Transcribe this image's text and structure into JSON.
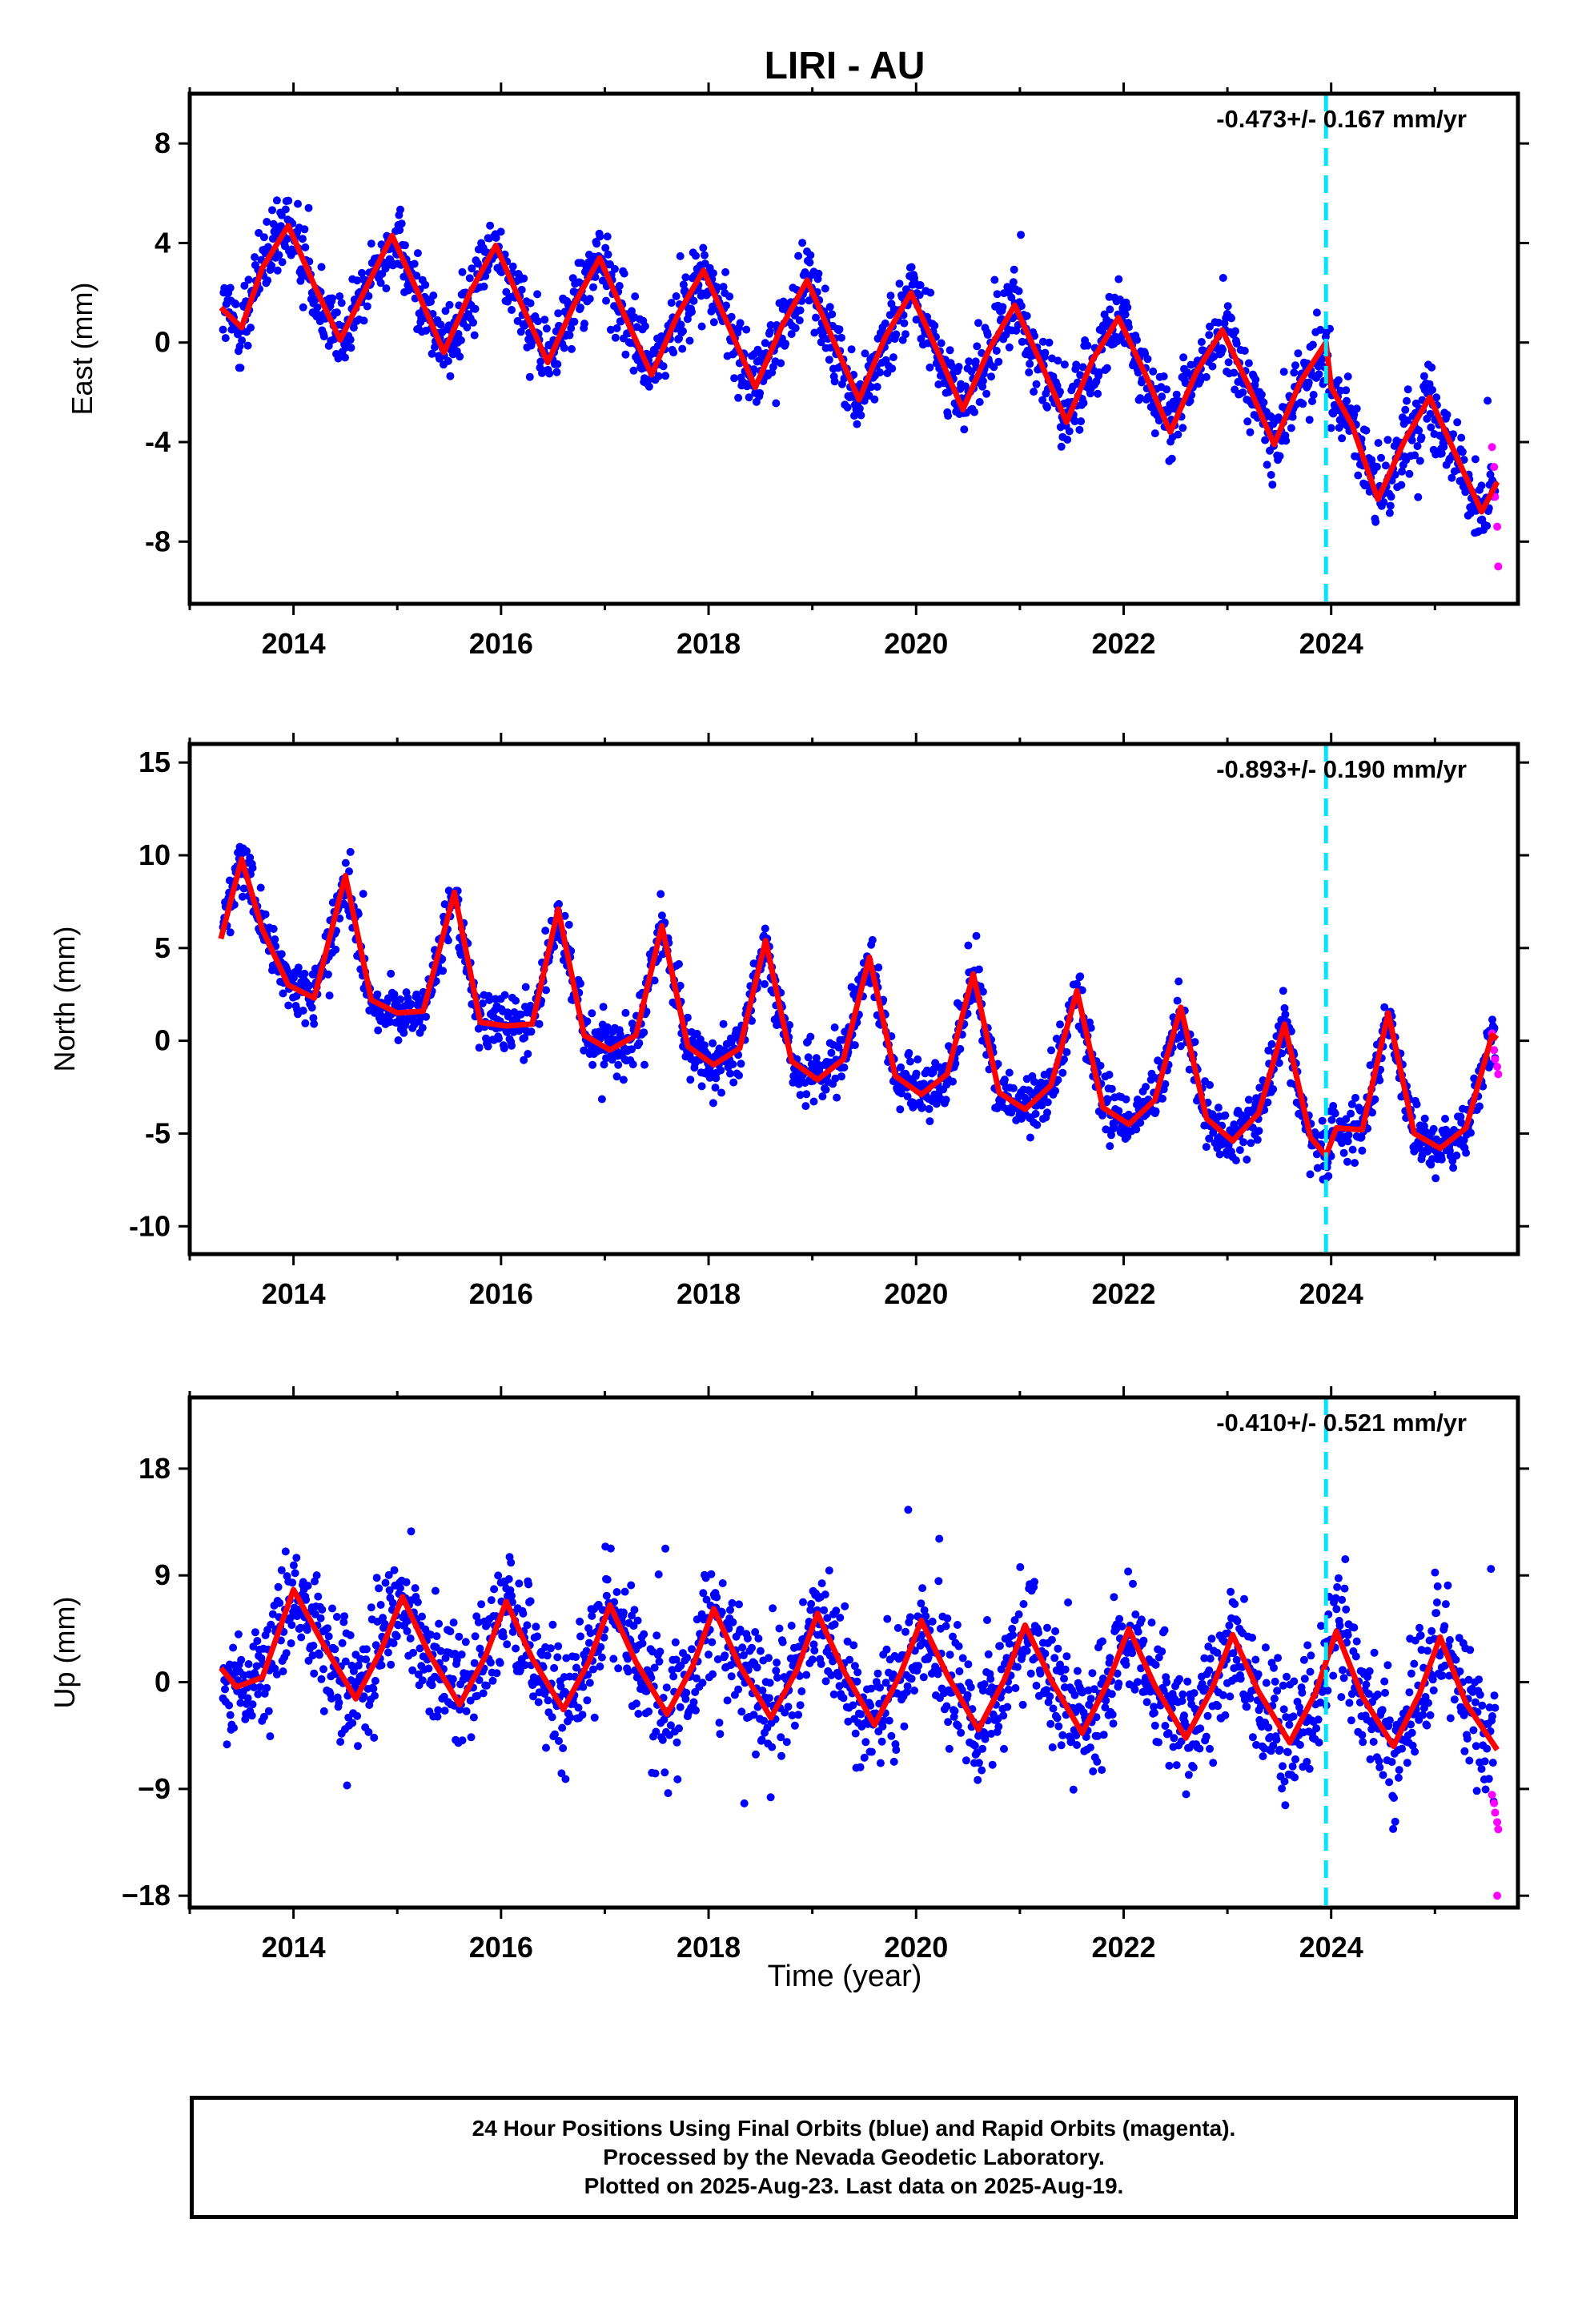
{
  "title": "LIRI - AU",
  "xlabel": "Time (year)",
  "colors": {
    "final": "#0000ff",
    "rapid": "#ff00ff",
    "model": "#ff0000",
    "event": "#00e5ff"
  },
  "footer": {
    "line1": "24 Hour Positions Using Final Orbits (blue) and Rapid Orbits (magenta).",
    "line2": "Processed by the Nevada Geodetic Laboratory.",
    "line3": "Plotted on 2025-Aug-23. Last data on 2025-Aug-19."
  },
  "chart_data": [
    {
      "type": "scatter",
      "name": "east",
      "title": "LIRI - AU",
      "ylabel": "East (mm)",
      "xlabel": "",
      "rate_text": "-0.473+/- 0.167 mm/yr",
      "xlim": [
        2013.0,
        2025.8
      ],
      "ylim": [
        -10.5,
        10
      ],
      "xticks": [
        2014,
        2016,
        2018,
        2020,
        2022,
        2024
      ],
      "xtick_labels": [
        "2014",
        "2016",
        "2018",
        "2020",
        "2022",
        "2024"
      ],
      "yticks": [
        -8,
        -4,
        0,
        4,
        8
      ],
      "ytick_labels": [
        "-8",
        "-4",
        "0",
        "4",
        "8"
      ],
      "event_line_x": 2023.95,
      "grid": false,
      "model": {
        "x": [
          2013.3,
          2013.5,
          2013.7,
          2013.95,
          2014.2,
          2014.45,
          2014.7,
          2014.95,
          2015.2,
          2015.45,
          2015.7,
          2015.95,
          2016.2,
          2016.45,
          2016.7,
          2016.95,
          2017.2,
          2017.45,
          2017.7,
          2017.95,
          2018.2,
          2018.45,
          2018.7,
          2018.95,
          2019.2,
          2019.45,
          2019.7,
          2019.95,
          2020.2,
          2020.45,
          2020.7,
          2020.95,
          2021.2,
          2021.45,
          2021.7,
          2021.95,
          2022.2,
          2022.45,
          2022.7,
          2022.95,
          2023.2,
          2023.45,
          2023.7,
          2023.95,
          2024.0,
          2024.2,
          2024.45,
          2024.7,
          2024.95,
          2025.2,
          2025.45,
          2025.6
        ],
        "y": [
          1.4,
          0.6,
          3.0,
          4.7,
          2.3,
          0.1,
          2.2,
          4.3,
          2.0,
          -0.4,
          2.0,
          3.9,
          1.5,
          -0.8,
          1.5,
          3.4,
          1.0,
          -1.3,
          1.1,
          2.9,
          0.6,
          -1.8,
          0.6,
          2.5,
          0.1,
          -2.3,
          0.2,
          2.0,
          -0.3,
          -2.7,
          -0.3,
          1.5,
          -0.8,
          -3.2,
          -0.7,
          1.0,
          -1.2,
          -3.6,
          -1.2,
          0.5,
          -1.7,
          -4.1,
          -1.6,
          0.0,
          -1.8,
          -3.3,
          -6.3,
          -4.0,
          -2.2,
          -4.5,
          -6.8,
          -5.6
        ]
      },
      "rapid": {
        "x": [
          2025.55,
          2025.57,
          2025.58,
          2025.6,
          2025.61
        ],
        "y": [
          -4.2,
          -5.0,
          -6.2,
          -7.4,
          -9.0
        ]
      }
    },
    {
      "type": "scatter",
      "name": "north",
      "ylabel": "North (mm)",
      "xlabel": "",
      "rate_text": "-0.893+/- 0.190 mm/yr",
      "xlim": [
        2013.0,
        2025.8
      ],
      "ylim": [
        -11.5,
        16
      ],
      "xticks": [
        2014,
        2016,
        2018,
        2020,
        2022,
        2024
      ],
      "xtick_labels": [
        "2014",
        "2016",
        "2018",
        "2020",
        "2022",
        "2024"
      ],
      "yticks": [
        -10,
        -5,
        0,
        5,
        10,
        15
      ],
      "ytick_labels": [
        "-10",
        "-5",
        "0",
        "5",
        "10",
        "15"
      ],
      "event_line_x": 2023.95,
      "grid": false,
      "model": {
        "x": [
          2013.3,
          2013.5,
          2013.7,
          2013.95,
          2014.2,
          2014.5,
          2014.75,
          2015.0,
          2015.25,
          2015.55,
          2015.8,
          2016.05,
          2016.3,
          2016.55,
          2016.8,
          2017.05,
          2017.3,
          2017.55,
          2017.8,
          2018.05,
          2018.3,
          2018.55,
          2018.8,
          2019.05,
          2019.3,
          2019.55,
          2019.8,
          2020.05,
          2020.3,
          2020.55,
          2020.8,
          2021.05,
          2021.3,
          2021.55,
          2021.8,
          2022.05,
          2022.3,
          2022.55,
          2022.8,
          2023.05,
          2023.3,
          2023.55,
          2023.8,
          2023.95,
          2024.05,
          2024.3,
          2024.55,
          2024.8,
          2025.05,
          2025.3,
          2025.55,
          2025.6
        ],
        "y": [
          5.5,
          9.8,
          6.0,
          3.0,
          2.3,
          8.9,
          2.2,
          1.5,
          1.6,
          8.0,
          1.0,
          0.8,
          0.9,
          7.1,
          0.3,
          -0.5,
          0.3,
          6.2,
          -0.3,
          -1.3,
          -0.4,
          5.4,
          -1.1,
          -2.1,
          -1.0,
          4.5,
          -1.9,
          -2.9,
          -1.8,
          3.6,
          -2.8,
          -3.7,
          -2.4,
          2.7,
          -3.6,
          -4.5,
          -3.2,
          1.8,
          -4.2,
          -5.4,
          -3.9,
          0.9,
          -5.2,
          -6.2,
          -4.7,
          -4.8,
          1.5,
          -5.0,
          -5.8,
          -4.7,
          0.3,
          0.1
        ]
      },
      "rapid": {
        "x": [
          2025.55,
          2025.57,
          2025.58,
          2025.6,
          2025.61
        ],
        "y": [
          0.4,
          -0.5,
          -1.0,
          -1.4,
          -1.8
        ]
      }
    },
    {
      "type": "scatter",
      "name": "up",
      "ylabel": "Up (mm)",
      "xlabel": "Time (year)",
      "rate_text": "-0.410+/- 0.521 mm/yr",
      "xlim": [
        2013.0,
        2025.8
      ],
      "ylim": [
        -19,
        24
      ],
      "xticks": [
        2014,
        2016,
        2018,
        2020,
        2022,
        2024
      ],
      "xtick_labels": [
        "2014",
        "2016",
        "2018",
        "2020",
        "2022",
        "2024"
      ],
      "yticks": [
        -18,
        -9,
        0,
        9,
        18
      ],
      "ytick_labels": [
        "−18",
        "−9",
        "0",
        "9",
        "18"
      ],
      "event_line_x": 2023.95,
      "grid": false,
      "model": {
        "x": [
          2013.3,
          2013.45,
          2013.7,
          2014.0,
          2014.3,
          2014.6,
          2014.85,
          2015.05,
          2015.3,
          2015.6,
          2015.85,
          2016.05,
          2016.3,
          2016.6,
          2016.85,
          2017.05,
          2017.3,
          2017.6,
          2017.85,
          2018.05,
          2018.3,
          2018.6,
          2018.85,
          2019.05,
          2019.3,
          2019.6,
          2019.85,
          2020.05,
          2020.3,
          2020.6,
          2020.85,
          2021.05,
          2021.3,
          2021.6,
          2021.85,
          2022.05,
          2022.3,
          2022.6,
          2022.85,
          2023.05,
          2023.3,
          2023.6,
          2023.85,
          2024.05,
          2024.3,
          2024.6,
          2024.85,
          2025.05,
          2025.3,
          2025.6
        ],
        "y": [
          1.2,
          -0.4,
          0.4,
          7.8,
          3.0,
          -1.4,
          2.8,
          7.2,
          2.5,
          -1.9,
          2.2,
          6.8,
          2.0,
          -2.3,
          1.8,
          6.5,
          1.7,
          -2.7,
          1.4,
          6.2,
          1.4,
          -3.0,
          1.0,
          5.8,
          1.0,
          -3.6,
          0.7,
          5.2,
          0.6,
          -4.0,
          0.2,
          4.8,
          0.2,
          -4.3,
          0.0,
          4.5,
          -0.3,
          -4.7,
          -0.6,
          4.0,
          -0.8,
          -5.1,
          -0.9,
          4.3,
          -1.2,
          -5.4,
          -1.0,
          3.8,
          -1.8,
          -5.7
        ]
      },
      "rapid": {
        "x": [
          2025.55,
          2025.57,
          2025.58,
          2025.6,
          2025.61,
          2025.6
        ],
        "y": [
          -9.5,
          -10.2,
          -11.0,
          -11.8,
          -12.4,
          -18.0
        ]
      }
    }
  ]
}
